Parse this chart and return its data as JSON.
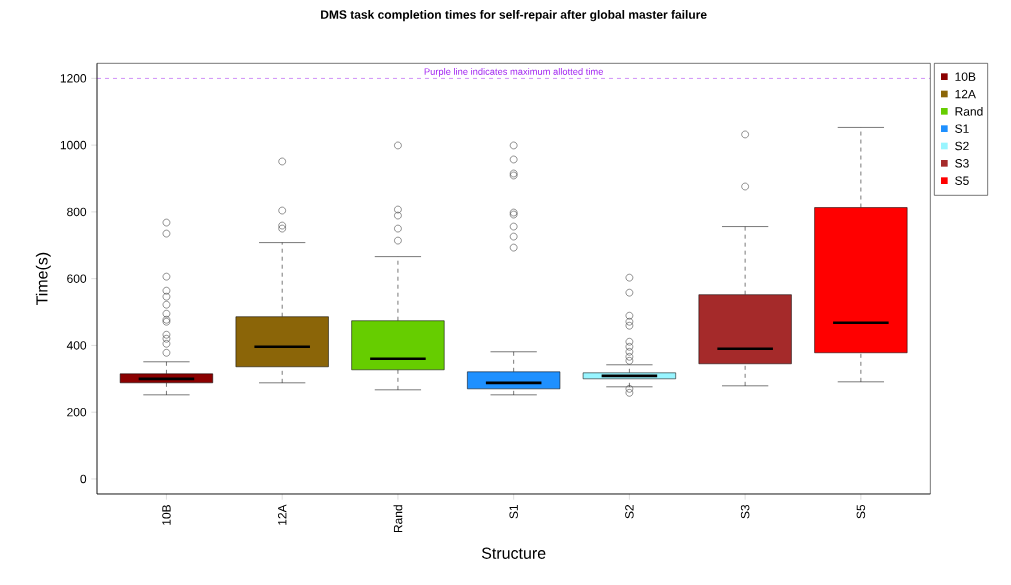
{
  "chart_data": {
    "type": "box",
    "title": "DMS task completion times for self-repair after global master failure",
    "xlabel": "Structure",
    "ylabel": "Time(s)",
    "categories": [
      "10B",
      "12A",
      "Rand",
      "S1",
      "S2",
      "S3",
      "S5"
    ],
    "colors": [
      "#8b0000",
      "#8b6508",
      "#66cd00",
      "#1e90ff",
      "#98f5ff",
      "#a52a2a",
      "#ff0000"
    ],
    "boxes": [
      {
        "low": 252,
        "q1": 288,
        "median": 300,
        "q3": 315,
        "high": 351,
        "outliers": [
          768,
          735,
          606,
          564,
          546,
          522,
          495,
          477,
          471,
          432,
          420,
          405,
          378
        ]
      },
      {
        "low": 288,
        "q1": 336,
        "median": 396,
        "q3": 486,
        "high": 708,
        "outliers": [
          951,
          804,
          759,
          750
        ]
      },
      {
        "low": 267,
        "q1": 327,
        "median": 360,
        "q3": 474,
        "high": 666,
        "outliers": [
          999,
          807,
          789,
          750,
          714
        ]
      },
      {
        "low": 252,
        "q1": 270,
        "median": 288,
        "q3": 321,
        "high": 381,
        "outliers": [
          999,
          957,
          915,
          909,
          798,
          792,
          756,
          726,
          693
        ]
      },
      {
        "low": 276,
        "q1": 300,
        "median": 309,
        "q3": 318,
        "high": 342,
        "outliers": [
          603,
          558,
          489,
          471,
          459,
          411,
          396,
          381,
          366,
          354,
          270,
          258
        ]
      },
      {
        "low": 279,
        "q1": 345,
        "median": 390,
        "q3": 552,
        "high": 756,
        "outliers": [
          1032,
          876
        ]
      },
      {
        "low": 291,
        "q1": 378,
        "median": 468,
        "q3": 813,
        "high": 1053
      }
    ],
    "ylim": [
      -45,
      1245
    ],
    "yticks": [
      0,
      200,
      400,
      600,
      800,
      1000,
      1200
    ],
    "ref_lines": [
      {
        "axis": "y",
        "value": 1200,
        "label": "Purple line indicates maximum allotted time",
        "color": "#a020f0",
        "line_style": "dashed"
      }
    ],
    "legend": "top right"
  }
}
